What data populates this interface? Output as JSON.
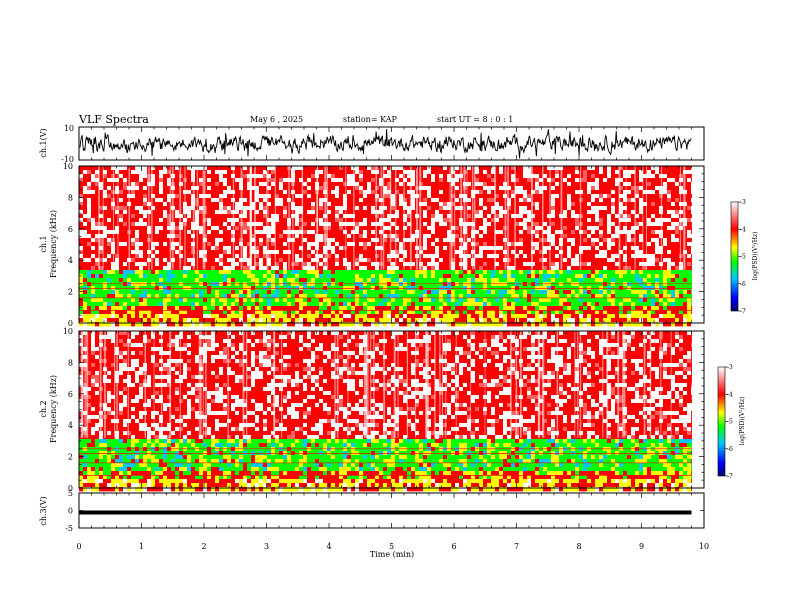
{
  "header": {
    "title": "VLF Spectra",
    "date": "May 6 , 2025",
    "station": "station= KAP",
    "start": "start UT =  8 : 0 : 1"
  },
  "chart_data": [
    {
      "type": "line",
      "name": "ch.1 waveform",
      "ylabel": "ch.1(V)",
      "xlim": [
        0,
        10
      ],
      "ylim": [
        -10,
        10
      ],
      "yticks": [
        "10",
        "-10"
      ],
      "note_data_extent_min": 9.8
    },
    {
      "type": "heatmap",
      "name": "ch.1 spectrogram",
      "ylabel": "ch.1",
      "ylabel2": "Frequency (kHz)",
      "xlim": [
        0,
        9.8
      ],
      "ylim": [
        0,
        10
      ],
      "yticks": [
        "0",
        "2",
        "4",
        "6",
        "8",
        "10"
      ],
      "colorbar": {
        "label": "log(PSD)(V²/Hz)",
        "range": [
          -7,
          -3
        ],
        "ticks": [
          "-3",
          "-4",
          "-5",
          "-6",
          "-7"
        ],
        "colors": [
          "#000080",
          "#0000ff",
          "#00c8ff",
          "#00ff00",
          "#ffff00",
          "#ff0000",
          "#ffffff"
        ]
      },
      "bands": [
        {
          "from_khz": 0,
          "to_khz": 0.6,
          "dominant": "yellow/red"
        },
        {
          "from_khz": 1.2,
          "to_khz": 3.4,
          "dominant": "green/yellow"
        },
        {
          "from_khz": 3.4,
          "to_khz": 10,
          "dominant": "red/white"
        }
      ]
    },
    {
      "type": "heatmap",
      "name": "ch.2 spectrogram",
      "ylabel": "ch.2",
      "ylabel2": "Frequency (kHz)",
      "xlim": [
        0,
        9.8
      ],
      "ylim": [
        0,
        10
      ],
      "yticks": [
        "0",
        "2",
        "4",
        "6",
        "8",
        "10"
      ],
      "colorbar": {
        "label": "log(PSD)(V²/Hz)",
        "range": [
          -7,
          -3
        ],
        "ticks": [
          "-3",
          "-4",
          "-5",
          "-6",
          "-7"
        ],
        "colors": [
          "#000080",
          "#0000ff",
          "#00c8ff",
          "#00ff00",
          "#ffff00",
          "#ff0000",
          "#ffffff"
        ]
      },
      "bands": [
        {
          "from_khz": 0,
          "to_khz": 0.6,
          "dominant": "yellow/red"
        },
        {
          "from_khz": 1.0,
          "to_khz": 3.2,
          "dominant": "green/yellow"
        },
        {
          "from_khz": 3.2,
          "to_khz": 10,
          "dominant": "red/white"
        }
      ]
    },
    {
      "type": "line",
      "name": "ch.3 waveform",
      "ylabel": "ch.3(V)",
      "xlabel": "Time (min)",
      "xlim": [
        0,
        10
      ],
      "ylim": [
        -5,
        5
      ],
      "yticks": [
        "5",
        "0",
        "-5"
      ],
      "xticks": [
        "0",
        "1",
        "2",
        "3",
        "4",
        "5",
        "6",
        "7",
        "8",
        "9",
        "10"
      ],
      "trace_band_v": [
        -0.7,
        0
      ]
    }
  ]
}
